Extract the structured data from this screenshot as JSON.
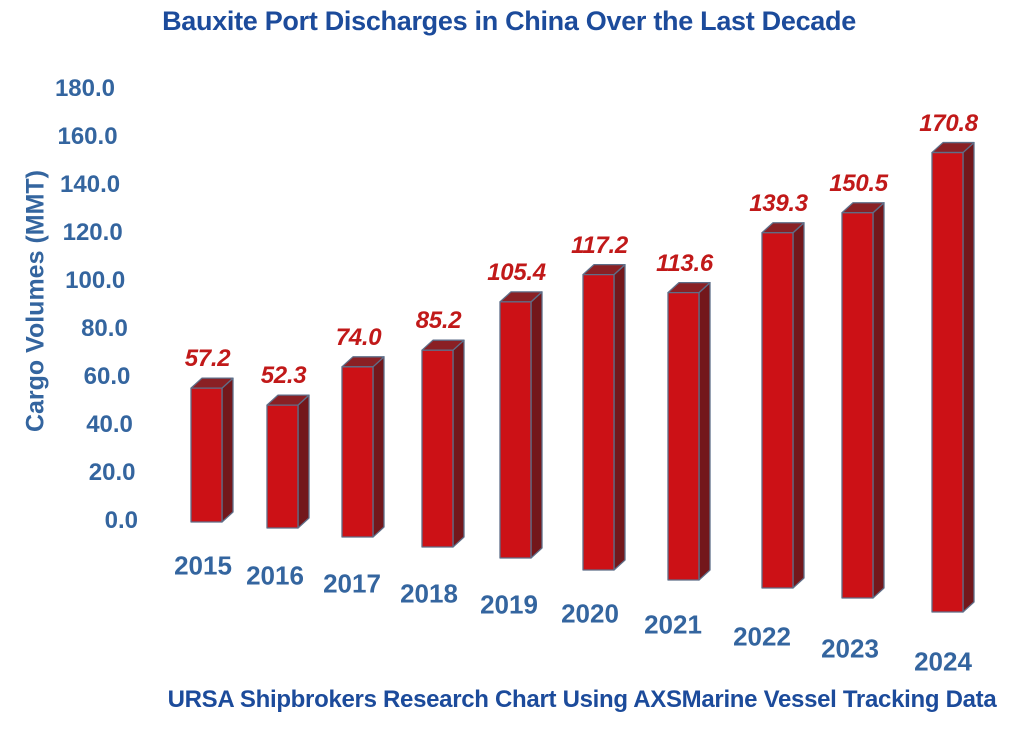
{
  "chart_data": {
    "type": "bar",
    "bar_style": "3d-column",
    "title": "Bauxite Port Discharges in China Over the Last Decade",
    "ylabel": "Cargo Volumes (MMT)",
    "xlabel": "",
    "footer": "URSA Shipbrokers Research Chart Using AXSMarine Vessel Tracking Data",
    "categories": [
      "2015",
      "2016",
      "2017",
      "2018",
      "2019",
      "2020",
      "2021",
      "2022",
      "2023",
      "2024"
    ],
    "values": [
      57.2,
      52.3,
      74.0,
      85.2,
      105.4,
      117.2,
      113.6,
      139.3,
      150.5,
      170.8
    ],
    "data_labels": [
      "57.2",
      "52.3",
      "74.0",
      "85.2",
      "105.4",
      "117.2",
      "113.6",
      "139.3",
      "150.5",
      "170.8"
    ],
    "ylim": [
      0,
      180
    ],
    "ytick_interval": 20,
    "ytick_labels": [
      "180.0",
      "160.0",
      "140.0",
      "120.0",
      "100.0",
      "80.0",
      "60.0",
      "40.0",
      "20.0",
      "0.0"
    ],
    "grid": false,
    "legend": "none",
    "colors": {
      "bar_front": "#CC1116",
      "bar_side": "#73171B",
      "bar_top": "#8A2024",
      "bar_edge": "#5E6E88",
      "value_label": "#C11919",
      "title_text": "#1C4B9B",
      "axis_text": "#34659F",
      "background": "#FFFFFF"
    }
  }
}
